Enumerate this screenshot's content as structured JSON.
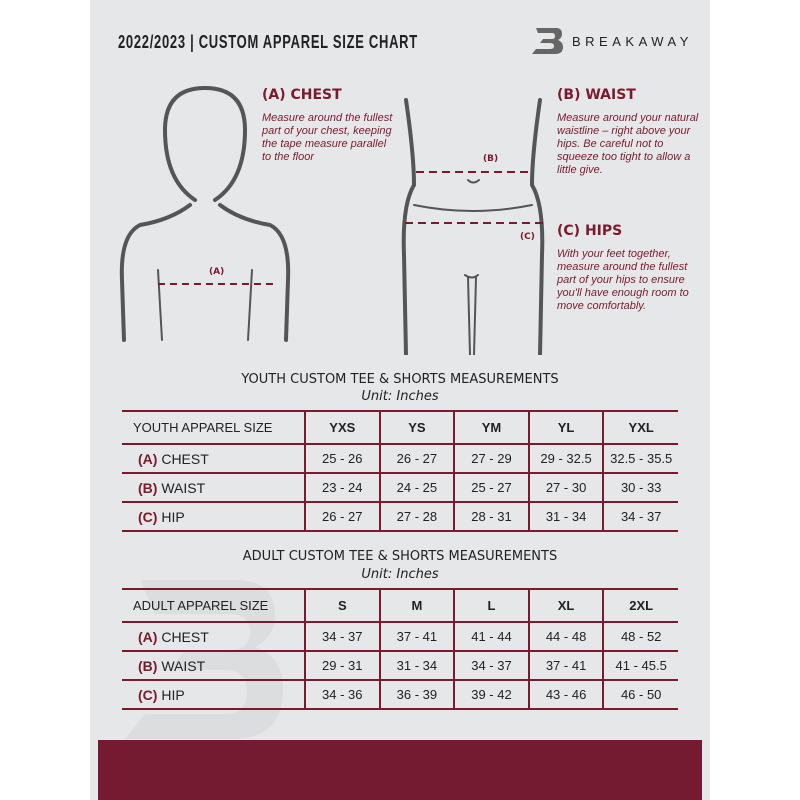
{
  "header": {
    "title": "2022/2023  |  CUSTOM APPAREL SIZE CHART",
    "brand": "BREAKAWAY",
    "logo_letter": "B"
  },
  "measures": {
    "chest": {
      "title": "(A) CHEST",
      "marker": "(A)",
      "desc": "Measure around the fullest part of your chest, keeping the tape measure parallel to the floor"
    },
    "waist": {
      "title": "(B) WAIST",
      "marker": "(B)",
      "desc": "Measure around your natural waistline – right above your hips. Be careful not to squeeze too tight to allow a little give."
    },
    "hips": {
      "title": "(C) HIPS",
      "marker": "(C)",
      "desc": "With your feet together, measure around the fullest part of your hips to ensure you'll have enough room to move comfortably."
    }
  },
  "youth": {
    "title": "YOUTH CUSTOM TEE & SHORTS MEASUREMENTS",
    "unit": "Unit: Inches",
    "header": [
      "YOUTH APPAREL SIZE",
      "YXS",
      "YS",
      "YM",
      "YL",
      "YXL"
    ],
    "rows": [
      {
        "code": "(A)",
        "name": "CHEST",
        "values": [
          "25 - 26",
          "26 - 27",
          "27 - 29",
          "29 - 32.5",
          "32.5 - 35.5"
        ]
      },
      {
        "code": "(B)",
        "name": "WAIST",
        "values": [
          "23 - 24",
          "24 - 25",
          "25 - 27",
          "27 - 30",
          "30 - 33"
        ]
      },
      {
        "code": "(C)",
        "name": "HIP",
        "values": [
          "26 - 27",
          "27 - 28",
          "28 - 31",
          "31 - 34",
          "34 - 37"
        ]
      }
    ]
  },
  "adult": {
    "title": "ADULT CUSTOM TEE & SHORTS MEASUREMENTS",
    "unit": "Unit: Inches",
    "header": [
      "ADULT APPAREL SIZE",
      "S",
      "M",
      "L",
      "XL",
      "2XL"
    ],
    "rows": [
      {
        "code": "(A)",
        "name": "CHEST",
        "values": [
          "34 - 37",
          "37 - 41",
          "41 - 44",
          "44 - 48",
          "48 - 52"
        ]
      },
      {
        "code": "(B)",
        "name": "WAIST",
        "values": [
          "29 - 31",
          "31 - 34",
          "34 - 37",
          "37 - 41",
          "41 - 45.5"
        ]
      },
      {
        "code": "(C)",
        "name": "HIP",
        "values": [
          "34 - 36",
          "36 - 39",
          "39 - 42",
          "43 - 46",
          "46 - 50"
        ]
      }
    ]
  },
  "colors": {
    "accent": "#741b31",
    "background": "#e6e7e8"
  }
}
